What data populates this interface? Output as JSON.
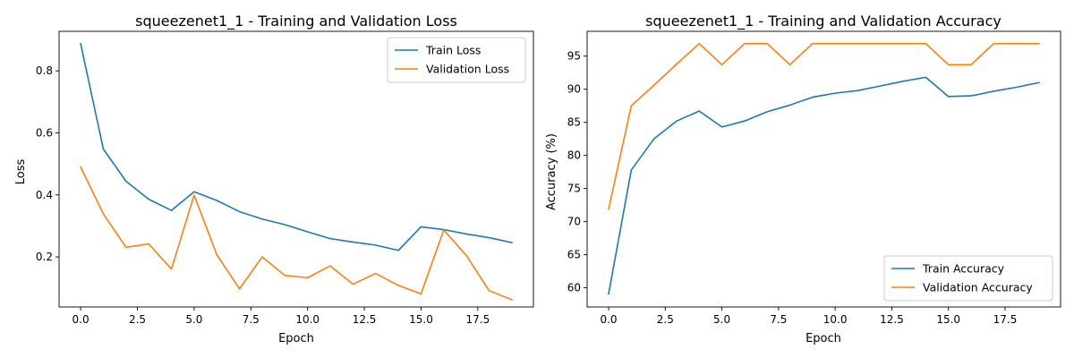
{
  "chart_data": [
    {
      "type": "line",
      "title": "squeezenet1_1 - Training and Validation Loss",
      "xlabel": "Epoch",
      "ylabel": "Loss",
      "xlim": [
        -0.95,
        19.95
      ],
      "ylim": [
        0.0385,
        0.9275
      ],
      "xticks": [
        0,
        2.5,
        5,
        7.5,
        10,
        12.5,
        15,
        17.5
      ],
      "xtick_labels": [
        "0.0",
        "2.5",
        "5.0",
        "7.5",
        "10.0",
        "12.5",
        "15.0",
        "17.5"
      ],
      "yticks": [
        0.2,
        0.4,
        0.6,
        0.8
      ],
      "ytick_labels": [
        "0.2",
        "0.4",
        "0.6",
        "0.8"
      ],
      "grid": false,
      "legend_position": "top-right",
      "x": [
        0,
        1,
        2,
        3,
        4,
        5,
        6,
        7,
        8,
        9,
        10,
        11,
        12,
        13,
        14,
        15,
        16,
        17,
        18,
        19
      ],
      "series": [
        {
          "name": "Train Loss",
          "color": "#1f77b4",
          "values": [
            0.888,
            0.548,
            0.444,
            0.386,
            0.35,
            0.41,
            0.382,
            0.346,
            0.322,
            0.304,
            0.281,
            0.259,
            0.248,
            0.238,
            0.221,
            0.297,
            0.288,
            0.274,
            0.262,
            0.246
          ]
        },
        {
          "name": "Validation Loss",
          "color": "#ff7f0e",
          "values": [
            0.49,
            0.339,
            0.231,
            0.242,
            0.161,
            0.399,
            0.207,
            0.097,
            0.2,
            0.14,
            0.133,
            0.171,
            0.112,
            0.147,
            0.108,
            0.081,
            0.287,
            0.204,
            0.091,
            0.062
          ]
        }
      ]
    },
    {
      "type": "line",
      "title": "squeezenet1_1 - Training and Validation Accuracy",
      "xlabel": "Epoch",
      "ylabel": "Accuracy (%)",
      "xlim": [
        -0.95,
        19.95
      ],
      "ylim": [
        57.1,
        98.75
      ],
      "xticks": [
        0,
        2.5,
        5,
        7.5,
        10,
        12.5,
        15,
        17.5
      ],
      "xtick_labels": [
        "0.0",
        "2.5",
        "5.0",
        "7.5",
        "10.0",
        "12.5",
        "15.0",
        "17.5"
      ],
      "yticks": [
        60,
        65,
        70,
        75,
        80,
        85,
        90,
        95
      ],
      "ytick_labels": [
        "60",
        "65",
        "70",
        "75",
        "80",
        "85",
        "90",
        "95"
      ],
      "grid": false,
      "legend_position": "bottom-right",
      "x": [
        0,
        1,
        2,
        3,
        4,
        5,
        6,
        7,
        8,
        9,
        10,
        11,
        12,
        13,
        14,
        15,
        16,
        17,
        18,
        19
      ],
      "series": [
        {
          "name": "Train Accuracy",
          "color": "#1f77b4",
          "values": [
            59.1,
            77.8,
            82.5,
            85.2,
            86.7,
            84.3,
            85.2,
            86.6,
            87.6,
            88.8,
            89.4,
            89.8,
            90.5,
            91.2,
            91.8,
            88.9,
            89.0,
            89.7,
            90.3,
            91.0
          ]
        },
        {
          "name": "Validation Accuracy",
          "color": "#ff7f0e",
          "values": [
            71.9,
            87.5,
            90.6,
            93.8,
            96.9,
            93.7,
            96.9,
            96.9,
            93.7,
            96.9,
            96.9,
            96.9,
            96.9,
            96.9,
            96.9,
            93.7,
            93.7,
            96.9,
            96.9,
            96.9
          ]
        }
      ]
    }
  ]
}
